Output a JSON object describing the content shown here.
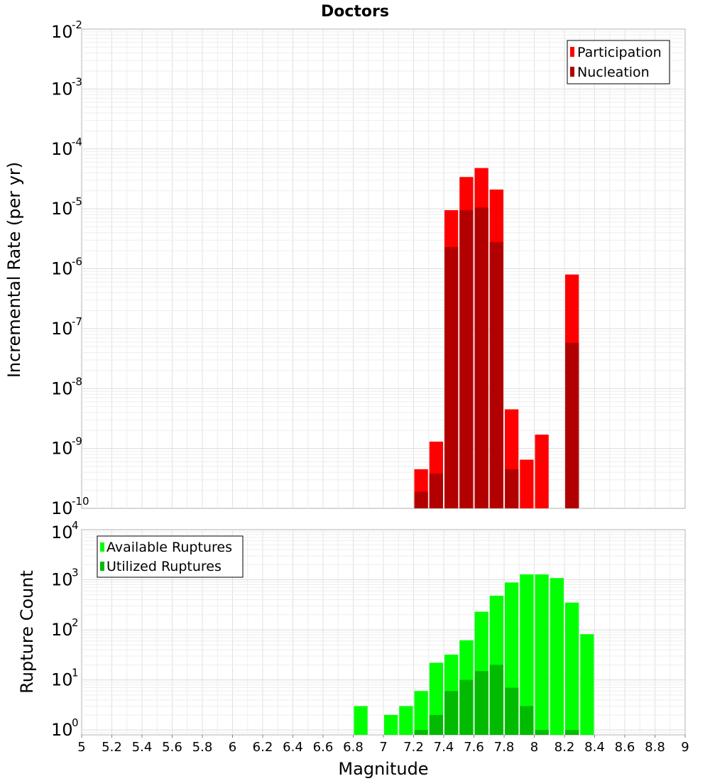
{
  "chart_data": [
    {
      "type": "bar",
      "title": "Doctors",
      "xlabel": "",
      "ylabel": "Incremental Rate (per yr)",
      "yscale": "log",
      "ylim": [
        1e-10,
        0.01
      ],
      "xlim": [
        5,
        9
      ],
      "y_tick_bases": [
        "10",
        "10",
        "10",
        "10",
        "10",
        "10",
        "10",
        "10",
        "10"
      ],
      "y_tick_exponents": [
        "-10",
        "-9",
        "-8",
        "-7",
        "-6",
        "-5",
        "-4",
        "-3",
        "-2"
      ],
      "grid": true,
      "legend_position": "top-right",
      "bin_width": 0.1,
      "series": [
        {
          "name": "Participation",
          "color": "#ff0000",
          "x": [
            7.25,
            7.35,
            7.45,
            7.55,
            7.65,
            7.75,
            7.85,
            7.95,
            8.05,
            8.25
          ],
          "values": [
            4.5e-10,
            1.3e-09,
            9.5e-06,
            3.4e-05,
            4.8e-05,
            2.1e-05,
            4.5e-09,
            6.5e-10,
            1.7e-09,
            8e-07
          ]
        },
        {
          "name": "Nucleation",
          "color": "#b20000",
          "x": [
            7.25,
            7.35,
            7.45,
            7.55,
            7.65,
            7.75,
            7.85,
            8.25
          ],
          "values": [
            1.9e-10,
            3.8e-10,
            2.3e-06,
            9.5e-06,
            1.05e-05,
            2.8e-06,
            4.5e-10,
            5.8e-08
          ]
        }
      ]
    },
    {
      "type": "bar",
      "title": "",
      "xlabel": "Magnitude",
      "ylabel": "Rupture Count",
      "yscale": "log",
      "ylim": [
        0.8,
        10000
      ],
      "xlim": [
        5,
        9
      ],
      "x_ticks": [
        "5",
        "5.2",
        "5.4",
        "5.6",
        "5.8",
        "6",
        "6.2",
        "6.4",
        "6.6",
        "6.8",
        "7",
        "7.2",
        "7.4",
        "7.6",
        "7.8",
        "8",
        "8.2",
        "8.4",
        "8.6",
        "8.8",
        "9"
      ],
      "y_tick_bases": [
        "10",
        "10",
        "10",
        "10",
        "10"
      ],
      "y_tick_exponents": [
        "0",
        "1",
        "2",
        "3",
        "4"
      ],
      "grid": true,
      "legend_position": "top-left",
      "bin_width": 0.1,
      "series": [
        {
          "name": "Available Ruptures",
          "color": "#00ff00",
          "x": [
            6.85,
            7.05,
            7.15,
            7.25,
            7.35,
            7.45,
            7.55,
            7.65,
            7.75,
            7.85,
            7.95,
            8.05,
            8.15,
            8.25,
            8.35
          ],
          "values": [
            3,
            2,
            3,
            6,
            22,
            32,
            62,
            230,
            480,
            880,
            1280,
            1280,
            1080,
            350,
            82
          ]
        },
        {
          "name": "Utilized Ruptures",
          "color": "#00bb00",
          "x": [
            7.25,
            7.35,
            7.45,
            7.55,
            7.65,
            7.75,
            7.85,
            7.95,
            8.05,
            8.25
          ],
          "values": [
            1,
            2,
            6,
            10,
            15,
            20,
            7,
            3,
            1,
            1
          ]
        }
      ]
    }
  ]
}
